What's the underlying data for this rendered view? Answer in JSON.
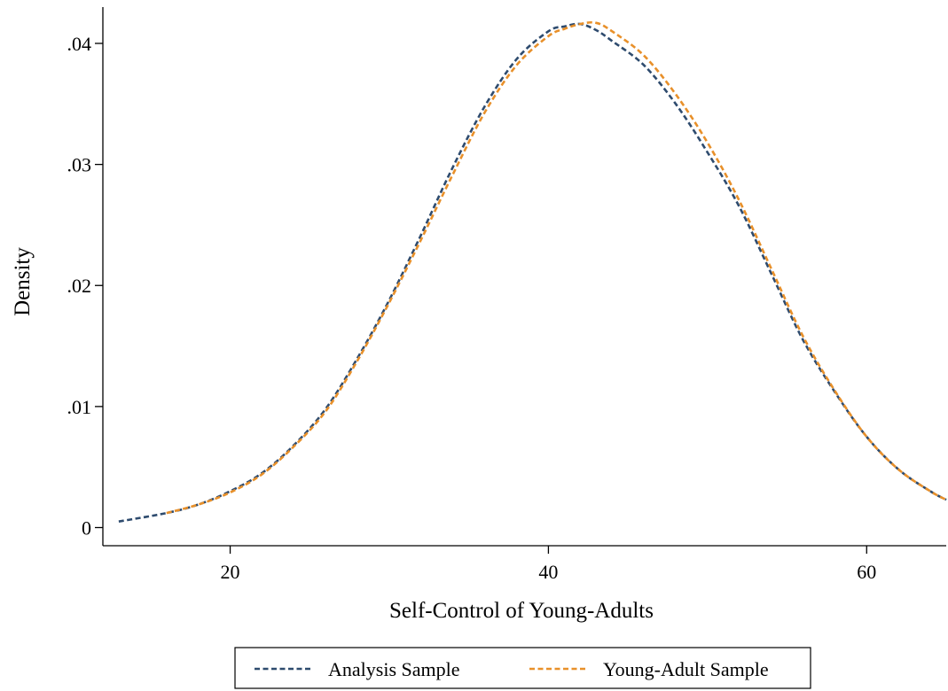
{
  "chart_data": {
    "type": "line",
    "xlabel": "Self-Control of Young-Adults",
    "ylabel": "Density",
    "xlim": [
      12,
      65
    ],
    "ylim": [
      -0.0015,
      0.043
    ],
    "x_ticks": [
      {
        "value": 20,
        "label": "20"
      },
      {
        "value": 40,
        "label": "40"
      },
      {
        "value": 60,
        "label": "60"
      }
    ],
    "y_ticks": [
      {
        "value": 0,
        "label": "0"
      },
      {
        "value": 0.01,
        "label": ".01"
      },
      {
        "value": 0.02,
        "label": ".02"
      },
      {
        "value": 0.03,
        "label": ".03"
      },
      {
        "value": 0.04,
        "label": ".04"
      }
    ],
    "grid": false,
    "legend_position": "bottom",
    "series": [
      {
        "name": "Analysis Sample",
        "color": "#2e4b6e",
        "points": [
          [
            13,
            0.0005
          ],
          [
            16,
            0.0012
          ],
          [
            18,
            0.0019
          ],
          [
            20,
            0.003
          ],
          [
            22,
            0.0045
          ],
          [
            24,
            0.0068
          ],
          [
            26,
            0.0098
          ],
          [
            28,
            0.014
          ],
          [
            30,
            0.0188
          ],
          [
            32,
            0.0242
          ],
          [
            34,
            0.0298
          ],
          [
            36,
            0.0348
          ],
          [
            38,
            0.0387
          ],
          [
            40,
            0.041
          ],
          [
            41,
            0.0414
          ],
          [
            42,
            0.0416
          ],
          [
            43,
            0.0411
          ],
          [
            44,
            0.0402
          ],
          [
            46,
            0.0382
          ],
          [
            48,
            0.035
          ],
          [
            50,
            0.031
          ],
          [
            52,
            0.0265
          ],
          [
            54,
            0.021
          ],
          [
            56,
            0.0155
          ],
          [
            58,
            0.0112
          ],
          [
            60,
            0.0075
          ],
          [
            62,
            0.0048
          ],
          [
            64,
            0.003
          ],
          [
            65,
            0.0023
          ]
        ]
      },
      {
        "name": "Young-Adult Sample",
        "color": "#e8902a",
        "points": [
          [
            16,
            0.0012
          ],
          [
            18,
            0.0019
          ],
          [
            20,
            0.0029
          ],
          [
            22,
            0.0044
          ],
          [
            24,
            0.0067
          ],
          [
            26,
            0.0096
          ],
          [
            28,
            0.0138
          ],
          [
            30,
            0.0186
          ],
          [
            32,
            0.0238
          ],
          [
            34,
            0.0292
          ],
          [
            36,
            0.0343
          ],
          [
            38,
            0.0382
          ],
          [
            40,
            0.0406
          ],
          [
            41,
            0.0412
          ],
          [
            42,
            0.0416
          ],
          [
            43,
            0.0417
          ],
          [
            44,
            0.041
          ],
          [
            46,
            0.039
          ],
          [
            48,
            0.0358
          ],
          [
            50,
            0.0318
          ],
          [
            52,
            0.027
          ],
          [
            54,
            0.0214
          ],
          [
            56,
            0.0158
          ],
          [
            58,
            0.0113
          ],
          [
            60,
            0.0075
          ],
          [
            62,
            0.0048
          ],
          [
            64,
            0.003
          ],
          [
            65,
            0.0023
          ]
        ]
      }
    ]
  }
}
